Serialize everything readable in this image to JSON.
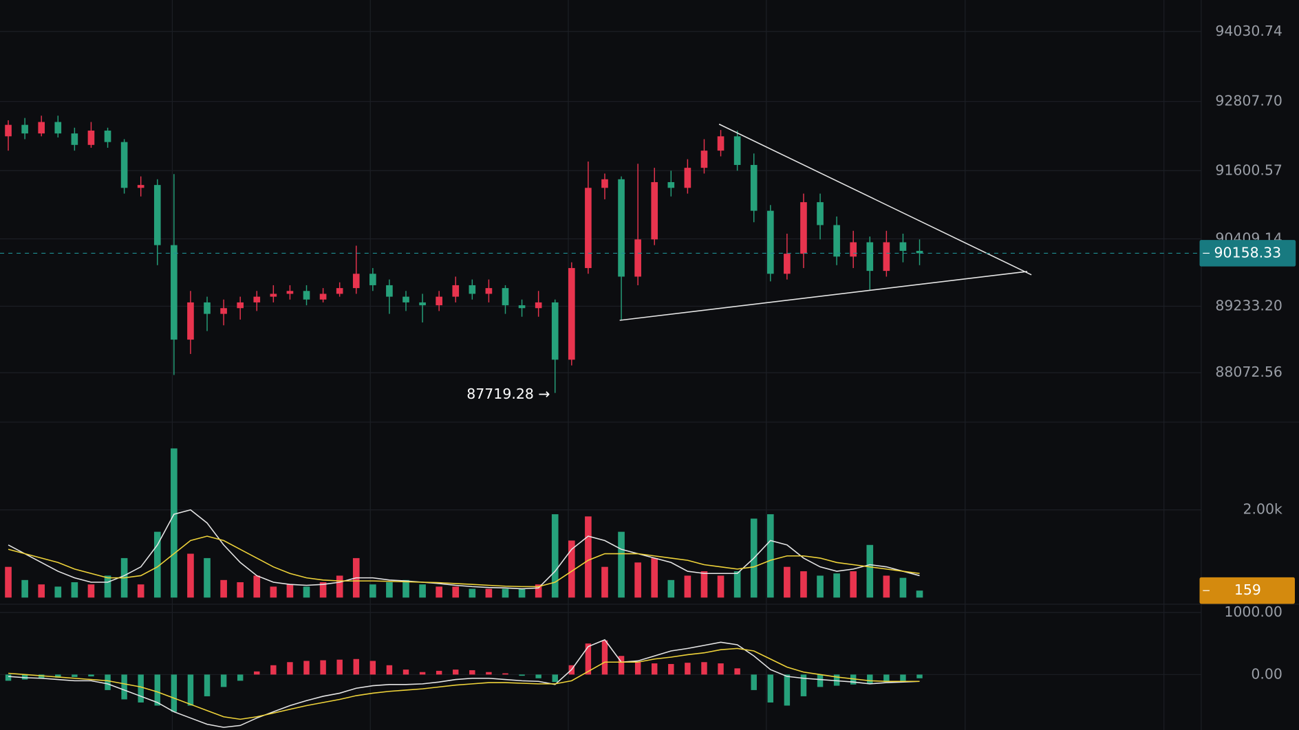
{
  "chart_data": [
    {
      "type": "candlestick",
      "open": [
        92200,
        92400,
        92250,
        92450,
        92250,
        92050,
        92300,
        92100,
        91300,
        91350,
        90300,
        88650,
        89300,
        89100,
        89200,
        89300,
        89400,
        89450,
        89500,
        89350,
        89450,
        89550,
        89800,
        89600,
        89400,
        89300,
        89250,
        89400,
        89600,
        89450,
        89550,
        89250,
        89200,
        89300,
        88300,
        89900,
        91300,
        91450,
        89750,
        90400,
        91400,
        91300,
        91650,
        91950,
        92200,
        91700,
        90900,
        89800,
        90150,
        91050,
        90650,
        90100,
        90350,
        89850,
        90350,
        90200
      ],
      "high": [
        92480,
        92520,
        92560,
        92560,
        92350,
        92450,
        92350,
        92150,
        91500,
        91450,
        91540,
        89500,
        89400,
        89350,
        89400,
        89500,
        89600,
        89600,
        89600,
        89550,
        89650,
        90290,
        89900,
        89700,
        89500,
        89450,
        89500,
        89750,
        89700,
        89700,
        89600,
        89350,
        89500,
        89350,
        90000,
        91760,
        91550,
        91500,
        91720,
        91650,
        91600,
        91800,
        92150,
        92310,
        92300,
        91900,
        91000,
        90500,
        91200,
        91200,
        90800,
        90550,
        90450,
        90550,
        90500,
        90400
      ],
      "low": [
        91950,
        92150,
        92200,
        92180,
        91950,
        92000,
        92000,
        91200,
        91150,
        89950,
        88033,
        88400,
        88800,
        88900,
        89000,
        89150,
        89300,
        89350,
        89250,
        89300,
        89400,
        89450,
        89500,
        89100,
        89150,
        88950,
        89150,
        89300,
        89350,
        89300,
        89100,
        89050,
        89050,
        87719.28,
        88200,
        89800,
        91100,
        88990,
        89600,
        90300,
        91150,
        91200,
        91550,
        91850,
        91600,
        90700,
        89667,
        89700,
        89900,
        90400,
        89950,
        89900,
        89522,
        89750,
        90000,
        89950
      ],
      "close": [
        92400,
        92250,
        92450,
        92250,
        92050,
        92300,
        92100,
        91300,
        91350,
        90300,
        88650,
        89300,
        89100,
        89200,
        89300,
        89400,
        89450,
        89500,
        89350,
        89450,
        89550,
        89800,
        89600,
        89400,
        89300,
        89250,
        89400,
        89600,
        89450,
        89550,
        89250,
        89200,
        89300,
        88300,
        89900,
        91300,
        91450,
        89750,
        90400,
        91400,
        91300,
        91650,
        91950,
        92200,
        91700,
        90900,
        89800,
        90150,
        91050,
        90650,
        90100,
        90350,
        89850,
        90350,
        90200,
        90158.33
      ],
      "up_color": "#e8344e",
      "down_color": "#26a17b",
      "ylim": [
        87210,
        94580
      ],
      "yticks": [
        {
          "value": 88072.56,
          "label": "88072.56"
        },
        {
          "value": 89233.2,
          "label": "89233.20"
        },
        90409.14,
        91600.57,
        {
          "value": 92807.7,
          "label": "92807.70"
        },
        94030.74
      ],
      "last_price": 90158.33,
      "annotations": [
        {
          "value": 87719.28,
          "label": "87719.28 →",
          "index": 33
        }
      ],
      "trendlines": [
        {
          "x": [
            42.9,
            61.75
          ],
          "y": [
            92412,
            89782
          ]
        },
        {
          "x": [
            36.9,
            61.5
          ],
          "y": [
            88987,
            89840
          ]
        }
      ]
    },
    {
      "type": "bar",
      "values": [
        700,
        400,
        300,
        250,
        350,
        300,
        500,
        900,
        300,
        1500,
        3400,
        1000,
        900,
        400,
        350,
        500,
        250,
        300,
        250,
        350,
        500,
        900,
        300,
        350,
        400,
        300,
        250,
        250,
        200,
        200,
        200,
        200,
        300,
        1900,
        1300,
        1850,
        700,
        1500,
        800,
        900,
        400,
        500,
        600,
        500,
        600,
        1800,
        1900,
        700,
        600,
        500,
        550,
        600,
        1200,
        500,
        450,
        159
      ],
      "up_color": "#e8344e",
      "down_color": "#26a17b",
      "series": [
        {
          "color": "#e6e6e6",
          "values": [
            1200,
            1000,
            800,
            600,
            450,
            350,
            350,
            500,
            700,
            1200,
            1900,
            2000,
            1700,
            1200,
            800,
            500,
            350,
            300,
            280,
            300,
            350,
            450,
            450,
            400,
            380,
            350,
            320,
            280,
            250,
            230,
            220,
            200,
            220,
            600,
            1100,
            1400,
            1300,
            1100,
            1000,
            900,
            800,
            600,
            550,
            550,
            550,
            900,
            1300,
            1200,
            900,
            700,
            600,
            650,
            750,
            700,
            600,
            500
          ]
        },
        {
          "color": "#f0d43a",
          "values": [
            1100,
            1000,
            900,
            800,
            650,
            550,
            450,
            450,
            500,
            700,
            1000,
            1300,
            1400,
            1300,
            1100,
            900,
            700,
            550,
            450,
            400,
            380,
            380,
            380,
            370,
            360,
            350,
            340,
            320,
            300,
            280,
            260,
            250,
            250,
            350,
            600,
            850,
            1000,
            1000,
            1000,
            950,
            900,
            850,
            750,
            700,
            650,
            700,
            850,
            950,
            950,
            900,
            800,
            750,
            700,
            650,
            600,
            550
          ]
        }
      ],
      "ylim": [
        0,
        4000
      ],
      "yticks": [
        {
          "value": 2000,
          "label": "2.00k"
        }
      ]
    },
    {
      "type": "macd",
      "values": [
        -100,
        -80,
        -60,
        -50,
        -40,
        -30,
        -250,
        -400,
        -450,
        -500,
        -600,
        -500,
        -350,
        -200,
        -100,
        50,
        150,
        200,
        220,
        230,
        240,
        250,
        220,
        150,
        80,
        40,
        60,
        80,
        70,
        40,
        20,
        -20,
        -60,
        -120,
        150,
        500,
        550,
        300,
        200,
        180,
        170,
        190,
        200,
        180,
        100,
        -250,
        -450,
        -500,
        -350,
        -200,
        -180,
        -160,
        -150,
        -120,
        -100,
        -60
      ],
      "up_color": "#e8344e",
      "down_color": "#26a17b",
      "series": [
        {
          "color": "#e6e6e6",
          "values": [
            -30,
            -50,
            -60,
            -80,
            -100,
            -100,
            -150,
            -250,
            -350,
            -450,
            -600,
            -700,
            -800,
            -850,
            -820,
            -700,
            -600,
            -500,
            -420,
            -350,
            -300,
            -220,
            -180,
            -160,
            -160,
            -150,
            -120,
            -80,
            -60,
            -60,
            -80,
            -100,
            -110,
            -160,
            80,
            450,
            560,
            200,
            220,
            300,
            380,
            420,
            470,
            520,
            480,
            300,
            80,
            -30,
            -60,
            -80,
            -100,
            -120,
            -150,
            -130,
            -120,
            -110
          ]
        },
        {
          "color": "#f0d43a",
          "values": [
            20,
            0,
            -20,
            -40,
            -60,
            -80,
            -100,
            -150,
            -200,
            -280,
            -380,
            -480,
            -580,
            -680,
            -720,
            -680,
            -620,
            -560,
            -500,
            -450,
            -400,
            -340,
            -300,
            -270,
            -250,
            -230,
            -200,
            -170,
            -150,
            -130,
            -130,
            -140,
            -150,
            -150,
            -100,
            50,
            200,
            200,
            200,
            250,
            280,
            320,
            350,
            400,
            420,
            380,
            250,
            120,
            40,
            0,
            -40,
            -70,
            -100,
            -110,
            -110,
            -110
          ]
        }
      ],
      "ylim": [
        -893,
        1133
      ],
      "yticks": [
        {
          "value": 0,
          "label": "0.00"
        },
        {
          "value": 1000,
          "label": "1000.00"
        }
      ]
    }
  ]
}
